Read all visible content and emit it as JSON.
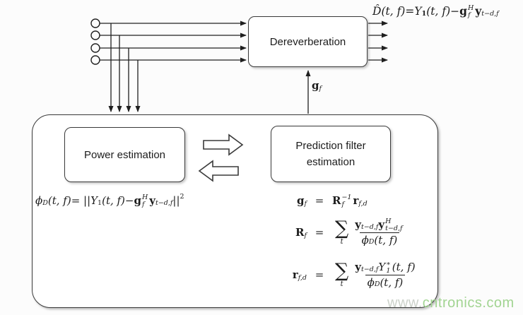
{
  "blocks": {
    "dereverberation_label": "Dereverberation",
    "power_label": "Power estimation",
    "prediction_label": "Prediction filter estimation"
  },
  "icons": {
    "mic_ports": "4 input port circles",
    "forward_back_arrows": "block double arrows between power and prediction boxes"
  },
  "colors": {
    "line": "#1f1f1f",
    "box_border": "#3a3a3a",
    "watermark_prefix": "#ccd2ca",
    "watermark_green": "#a2d492"
  },
  "watermark": {
    "prefix": "www.",
    "rest": "cntronics.com"
  },
  "formulas": {
    "output": [
      {
        "t": "D̂",
        "s": "i"
      },
      {
        "t": "(t, f)",
        "s": "i"
      },
      {
        "t": " = "
      },
      {
        "t": "Y",
        "s": "i"
      },
      {
        "t": "1",
        "s": "sub b"
      },
      {
        "t": "(t, f)",
        "s": "i"
      },
      {
        "t": " − "
      },
      {
        "t": "g",
        "s": "b"
      },
      {
        "ss": [
          "H",
          "f"
        ]
      },
      {
        "t": "y",
        "s": "b"
      },
      {
        "t": "t−d,f",
        "s": "sub i"
      }
    ],
    "gf_label": [
      {
        "t": "g",
        "s": "b"
      },
      {
        "t": "f",
        "s": "sub i"
      }
    ],
    "phi": [
      {
        "t": "ϕ",
        "s": "i"
      },
      {
        "t": "D",
        "s": "sub i"
      },
      {
        "t": "(t, f)",
        "s": "i"
      },
      {
        "t": " = ||"
      },
      {
        "t": "Y",
        "s": "i"
      },
      {
        "t": "1",
        "s": "sub"
      },
      {
        "t": "(t, f)",
        "s": "i"
      },
      {
        "t": " − "
      },
      {
        "t": "g",
        "s": "b"
      },
      {
        "ss": [
          "H",
          "f"
        ]
      },
      {
        "t": "y",
        "s": "b"
      },
      {
        "t": "t−d,f",
        "s": "sub i"
      },
      {
        "t": "||"
      },
      {
        "t": "2",
        "s": "sup"
      }
    ],
    "eq1_lhs": [
      {
        "t": "g",
        "s": "b"
      },
      {
        "t": "f",
        "s": "sub i"
      }
    ],
    "eq1_eq": [
      {
        "t": "="
      }
    ],
    "eq1_rhs": [
      {
        "t": "R",
        "s": "b"
      },
      {
        "ss": [
          "−1",
          "f"
        ]
      },
      {
        "t": "r",
        "s": "b"
      },
      {
        "t": "f,d",
        "s": "sub i"
      }
    ],
    "eq2_lhs": [
      {
        "t": "R",
        "s": "b"
      },
      {
        "t": "f",
        "s": "sub i"
      }
    ],
    "eq2_eq": [
      {
        "t": "="
      }
    ],
    "eq2_rhs": [
      {
        "sum": "t"
      },
      {
        "frac": {
          "num": [
            {
              "t": "y",
              "s": "b"
            },
            {
              "t": "t−d,f",
              "s": "sub i"
            },
            {
              "t": "y",
              "s": "b"
            },
            {
              "ss": [
                "H",
                "t−d,f"
              ]
            }
          ],
          "den": [
            {
              "t": "ϕ",
              "s": "i"
            },
            {
              "t": "D",
              "s": "sub i"
            },
            {
              "t": "(t, f)",
              "s": "i"
            }
          ]
        }
      }
    ],
    "eq3_lhs": [
      {
        "t": "r",
        "s": "b"
      },
      {
        "t": "f,d",
        "s": "sub i"
      }
    ],
    "eq3_eq": [
      {
        "t": "="
      }
    ],
    "eq3_rhs": [
      {
        "sum": "t"
      },
      {
        "frac": {
          "num": [
            {
              "t": "y",
              "s": "b"
            },
            {
              "t": "t−d,f",
              "s": "sub i"
            },
            {
              "t": "Y",
              "s": "i"
            },
            {
              "ss": [
                "∗",
                "1"
              ]
            },
            {
              "t": "(t, f)",
              "s": "i"
            }
          ],
          "den": [
            {
              "t": "ϕ",
              "s": "i"
            },
            {
              "t": "D",
              "s": "sub i"
            },
            {
              "t": "(t, f)",
              "s": "i"
            }
          ]
        }
      }
    ]
  }
}
